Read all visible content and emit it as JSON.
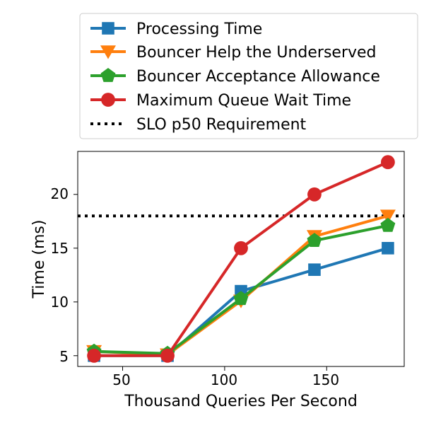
{
  "chart_data": {
    "type": "line",
    "title": "",
    "xlabel": "Thousand Queries Per Second",
    "ylabel": "Time (ms)",
    "xlim": [
      28,
      188
    ],
    "ylim": [
      4,
      24
    ],
    "xticks": [
      50,
      100,
      150
    ],
    "yticks": [
      5,
      10,
      15,
      20
    ],
    "grid": false,
    "legend_position": "top",
    "x": [
      36,
      72,
      108,
      144,
      180
    ],
    "series": [
      {
        "name": "Processing Time",
        "color": "#1f77b4",
        "marker": "square",
        "values": [
          5.0,
          5.0,
          11.0,
          13.0,
          15.0
        ]
      },
      {
        "name": "Bouncer Help the Underserved",
        "color": "#ff7f0e",
        "marker": "triangle-down",
        "values": [
          5.4,
          5.1,
          10.1,
          16.1,
          18.0
        ]
      },
      {
        "name": "Bouncer Acceptance Allowance",
        "color": "#2ca02c",
        "marker": "pentagon",
        "values": [
          5.4,
          5.2,
          10.3,
          15.7,
          17.1
        ]
      },
      {
        "name": "Maximum Queue Wait Time",
        "color": "#d62728",
        "marker": "circle",
        "values": [
          5.0,
          5.0,
          15.0,
          20.0,
          23.0
        ]
      }
    ],
    "reference_lines": [
      {
        "name": "SLO p50 Requirement",
        "color": "#000000",
        "style": "dotted",
        "y": 18
      }
    ]
  }
}
